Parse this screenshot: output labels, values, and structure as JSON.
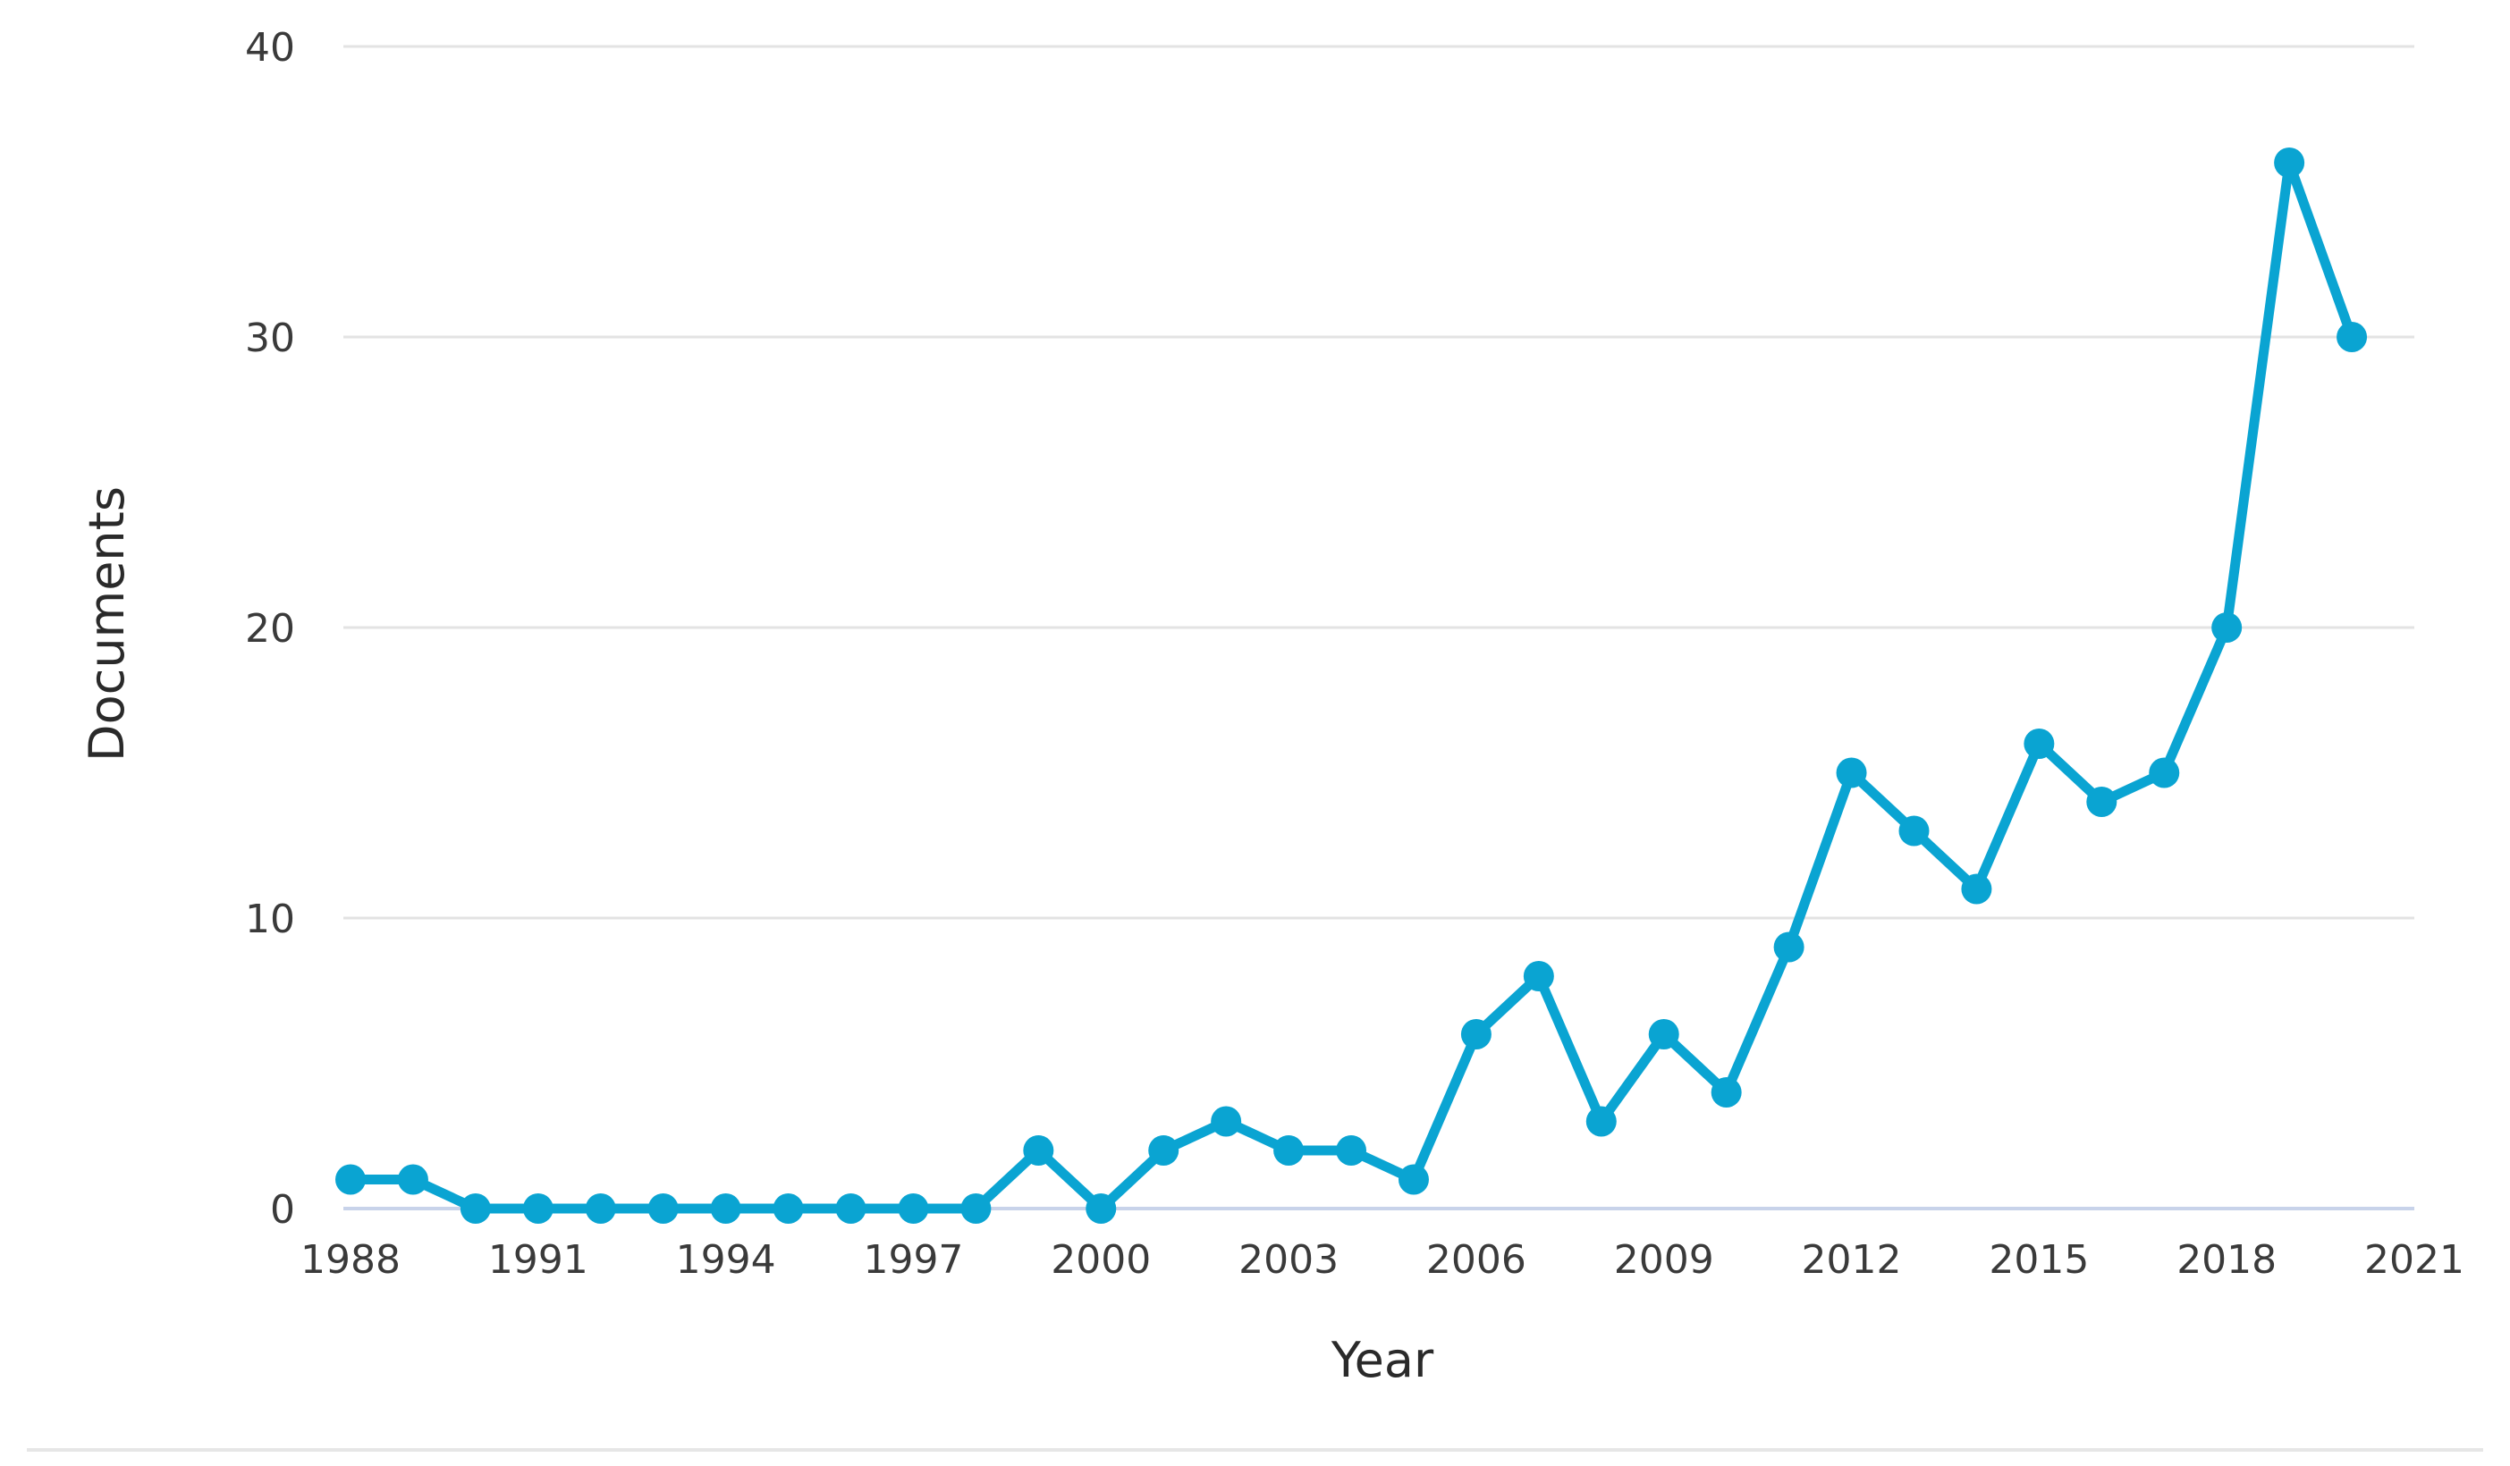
{
  "chart_data": {
    "type": "line",
    "title": "",
    "xlabel": "Year",
    "ylabel": "Documents",
    "ylim": [
      0,
      40
    ],
    "xlim": [
      1988,
      2021
    ],
    "y_ticks": [
      0,
      10,
      20,
      30,
      40
    ],
    "x_ticks": [
      1988,
      1991,
      1994,
      1997,
      2000,
      2003,
      2006,
      2009,
      2012,
      2015,
      2018,
      2021
    ],
    "grid": "horizontal",
    "color": "#0aa4d2",
    "series": [
      {
        "x": [
          1988,
          1989,
          1990,
          1991,
          1992,
          1993,
          1994,
          1995,
          1996,
          1997,
          1998,
          1999,
          2000,
          2001,
          2002,
          2003,
          2004,
          2005,
          2006,
          2007,
          2008,
          2009,
          2010,
          2011,
          2012,
          2013,
          2014,
          2015,
          2016,
          2017,
          2018,
          2019,
          2020
        ],
        "values": [
          1,
          1,
          0,
          0,
          0,
          0,
          0,
          0,
          0,
          0,
          0,
          2,
          0,
          2,
          3,
          2,
          2,
          1,
          6,
          8,
          3,
          6,
          4,
          9,
          15,
          13,
          11,
          16,
          14,
          15,
          20,
          36,
          30
        ]
      }
    ]
  }
}
